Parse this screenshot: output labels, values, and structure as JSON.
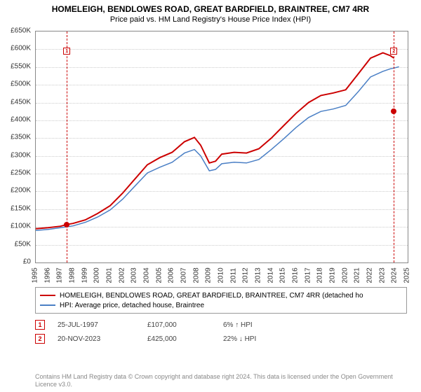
{
  "title": "HOMELEIGH, BENDLOWES ROAD, GREAT BARDFIELD, BRAINTREE, CM7 4RR",
  "subtitle": "Price paid vs. HM Land Registry's House Price Index (HPI)",
  "chart": {
    "type": "line",
    "background": "#ffffff",
    "grid_color": "#cccccc",
    "border_color": "#888888",
    "ylim": [
      0,
      650000
    ],
    "yticks": [
      0,
      50000,
      100000,
      150000,
      200000,
      250000,
      300000,
      350000,
      400000,
      450000,
      500000,
      550000,
      600000,
      650000
    ],
    "yticklabels": [
      "£0",
      "£50K",
      "£100K",
      "£150K",
      "£200K",
      "£250K",
      "£300K",
      "£350K",
      "£400K",
      "£450K",
      "£500K",
      "£550K",
      "£600K",
      "£650K"
    ],
    "xlim": [
      1995,
      2025
    ],
    "xticks": [
      1995,
      1996,
      1997,
      1998,
      1999,
      2000,
      2001,
      2002,
      2003,
      2004,
      2005,
      2006,
      2007,
      2008,
      2009,
      2010,
      2011,
      2012,
      2013,
      2014,
      2015,
      2016,
      2017,
      2018,
      2019,
      2020,
      2021,
      2022,
      2023,
      2024,
      2025
    ],
    "label_fontsize": 10,
    "series": [
      {
        "name": "HOMELEIGH, BENDLOWES ROAD, GREAT BARDFIELD, BRAINTREE, CM7 4RR (detached ho",
        "color": "#cc0000",
        "line_width": 2,
        "data": [
          [
            1995,
            95000
          ],
          [
            1996,
            98000
          ],
          [
            1997,
            102000
          ],
          [
            1997.5,
            107000
          ],
          [
            1998,
            110000
          ],
          [
            1999,
            120000
          ],
          [
            2000,
            138000
          ],
          [
            2001,
            160000
          ],
          [
            2002,
            195000
          ],
          [
            2003,
            235000
          ],
          [
            2004,
            275000
          ],
          [
            2005,
            295000
          ],
          [
            2006,
            310000
          ],
          [
            2007,
            340000
          ],
          [
            2007.8,
            352000
          ],
          [
            2008.3,
            330000
          ],
          [
            2009,
            280000
          ],
          [
            2009.5,
            285000
          ],
          [
            2010,
            305000
          ],
          [
            2011,
            310000
          ],
          [
            2012,
            308000
          ],
          [
            2013,
            320000
          ],
          [
            2014,
            350000
          ],
          [
            2015,
            385000
          ],
          [
            2016,
            420000
          ],
          [
            2017,
            450000
          ],
          [
            2018,
            470000
          ],
          [
            2019,
            477000
          ],
          [
            2020,
            486000
          ],
          [
            2021,
            530000
          ],
          [
            2022,
            575000
          ],
          [
            2023,
            590000
          ],
          [
            2023.6,
            582000
          ],
          [
            2023.9,
            575000
          ]
        ]
      },
      {
        "name": "HPI: Average price, detached house, Braintree",
        "color": "#4a7fc5",
        "line_width": 1.5,
        "data": [
          [
            1995,
            90000
          ],
          [
            1996,
            93000
          ],
          [
            1997,
            98000
          ],
          [
            1998,
            103000
          ],
          [
            1999,
            113000
          ],
          [
            2000,
            128000
          ],
          [
            2001,
            148000
          ],
          [
            2002,
            178000
          ],
          [
            2003,
            215000
          ],
          [
            2004,
            252000
          ],
          [
            2005,
            268000
          ],
          [
            2006,
            282000
          ],
          [
            2007,
            308000
          ],
          [
            2007.8,
            318000
          ],
          [
            2008.3,
            300000
          ],
          [
            2009,
            258000
          ],
          [
            2009.5,
            262000
          ],
          [
            2010,
            278000
          ],
          [
            2011,
            282000
          ],
          [
            2012,
            280000
          ],
          [
            2013,
            290000
          ],
          [
            2014,
            318000
          ],
          [
            2015,
            348000
          ],
          [
            2016,
            380000
          ],
          [
            2017,
            408000
          ],
          [
            2018,
            425000
          ],
          [
            2019,
            432000
          ],
          [
            2020,
            442000
          ],
          [
            2021,
            480000
          ],
          [
            2022,
            522000
          ],
          [
            2023,
            538000
          ],
          [
            2023.6,
            545000
          ],
          [
            2024,
            548000
          ],
          [
            2024.3,
            551000
          ]
        ]
      }
    ],
    "transaction_markers": [
      {
        "n": "1",
        "x": 1997.5,
        "y_top": 28,
        "color": "#cc0000",
        "dot_y": 107000
      },
      {
        "n": "2",
        "x": 2023.89,
        "y_top": 28,
        "color": "#cc0000",
        "dot_y": 425000
      }
    ]
  },
  "transactions": [
    {
      "n": "1",
      "date": "25-JUL-1997",
      "price": "£107,000",
      "delta": "6% ↑ HPI",
      "color": "#cc0000"
    },
    {
      "n": "2",
      "date": "20-NOV-2023",
      "price": "£425,000",
      "delta": "22% ↓ HPI",
      "color": "#cc0000"
    }
  ],
  "copyright": "Contains HM Land Registry data © Crown copyright and database right 2024.\nThis data is licensed under the Open Government Licence v3.0."
}
